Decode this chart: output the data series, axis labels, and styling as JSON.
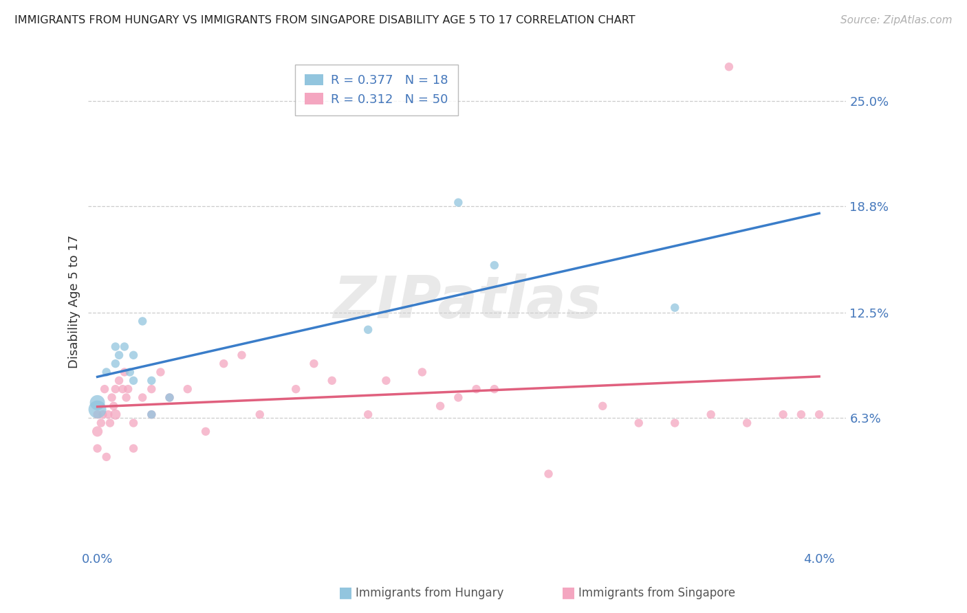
{
  "title": "IMMIGRANTS FROM HUNGARY VS IMMIGRANTS FROM SINGAPORE DISABILITY AGE 5 TO 17 CORRELATION CHART",
  "source": "Source: ZipAtlas.com",
  "ylabel": "Disability Age 5 to 17",
  "y_tick_labels": [
    "25.0%",
    "18.8%",
    "12.5%",
    "6.3%"
  ],
  "y_tick_values": [
    0.25,
    0.188,
    0.125,
    0.063
  ],
  "x_tick_labels": [
    "0.0%",
    "4.0%"
  ],
  "x_tick_values": [
    0.0,
    0.04
  ],
  "xlim": [
    -0.0005,
    0.0415
  ],
  "ylim": [
    -0.015,
    0.278
  ],
  "legend_hungary": "Immigrants from Hungary",
  "legend_singapore": "Immigrants from Singapore",
  "R_hungary": "0.377",
  "N_hungary": "18",
  "R_singapore": "0.312",
  "N_singapore": "50",
  "color_hungary": "#92c5de",
  "color_singapore": "#f4a6c0",
  "color_hungary_line": "#3a7dc9",
  "color_singapore_line": "#e0607e",
  "watermark_text": "ZIPatlas",
  "hungary_x": [
    0.0,
    0.0,
    0.0005,
    0.001,
    0.0015,
    0.002,
    0.002,
    0.0025,
    0.003,
    0.004,
    0.015,
    0.02,
    0.022,
    0.032,
    0.001,
    0.0012,
    0.0018,
    0.003
  ],
  "hungary_y": [
    0.068,
    0.072,
    0.09,
    0.095,
    0.105,
    0.085,
    0.1,
    0.12,
    0.085,
    0.075,
    0.115,
    0.19,
    0.153,
    0.128,
    0.105,
    0.1,
    0.09,
    0.065
  ],
  "hungary_size": [
    350,
    250,
    80,
    80,
    80,
    80,
    80,
    80,
    80,
    80,
    80,
    80,
    80,
    80,
    80,
    80,
    80,
    80
  ],
  "singapore_x": [
    0.0,
    0.0,
    0.0,
    0.0002,
    0.0003,
    0.0005,
    0.0007,
    0.0009,
    0.001,
    0.001,
    0.0012,
    0.0015,
    0.0017,
    0.002,
    0.002,
    0.003,
    0.003,
    0.004,
    0.005,
    0.007,
    0.009,
    0.011,
    0.013,
    0.015,
    0.018,
    0.02,
    0.022,
    0.025,
    0.028,
    0.03,
    0.032,
    0.035,
    0.038,
    0.039,
    0.0004,
    0.0006,
    0.0008,
    0.0014,
    0.0016,
    0.0025,
    0.0035,
    0.006,
    0.008,
    0.012,
    0.016,
    0.019,
    0.021,
    0.034,
    0.036,
    0.04
  ],
  "singapore_y": [
    0.055,
    0.065,
    0.045,
    0.06,
    0.065,
    0.04,
    0.06,
    0.07,
    0.065,
    0.08,
    0.085,
    0.09,
    0.08,
    0.045,
    0.06,
    0.065,
    0.08,
    0.075,
    0.08,
    0.095,
    0.065,
    0.08,
    0.085,
    0.065,
    0.09,
    0.075,
    0.08,
    0.03,
    0.07,
    0.06,
    0.06,
    0.27,
    0.065,
    0.065,
    0.08,
    0.065,
    0.075,
    0.08,
    0.075,
    0.075,
    0.09,
    0.055,
    0.1,
    0.095,
    0.085,
    0.07,
    0.08,
    0.065,
    0.06,
    0.065
  ],
  "singapore_size": [
    120,
    80,
    80,
    80,
    80,
    80,
    80,
    80,
    120,
    80,
    80,
    80,
    80,
    80,
    80,
    80,
    80,
    80,
    80,
    80,
    80,
    80,
    80,
    80,
    80,
    80,
    80,
    80,
    80,
    80,
    80,
    80,
    80,
    80,
    80,
    80,
    80,
    80,
    80,
    80,
    80,
    80,
    80,
    80,
    80,
    80,
    80,
    80,
    80,
    80
  ]
}
